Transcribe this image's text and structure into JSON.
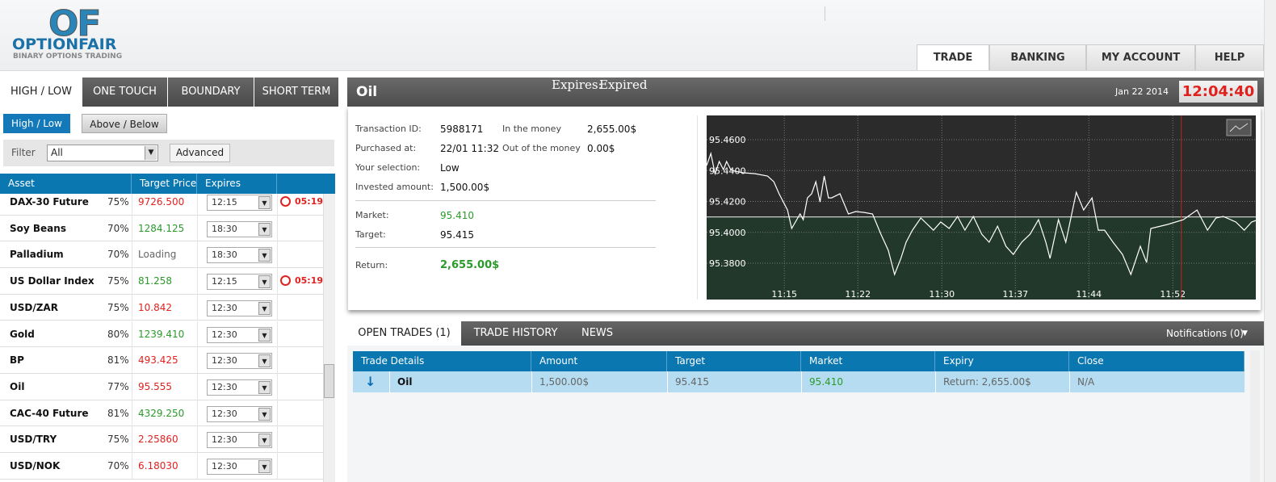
{
  "logo": {
    "mark": "OF",
    "name": "OPTIONFAIR",
    "tagline": "BINARY OPTIONS TRADING"
  },
  "nav": [
    "TRADE",
    "BANKING",
    "MY ACCOUNT",
    "HELP"
  ],
  "left_tabs": [
    "HIGH / LOW",
    "ONE TOUCH",
    "BOUNDARY",
    "SHORT TERM"
  ],
  "sub_tabs": [
    "High / Low",
    "Above / Below"
  ],
  "filter": {
    "label": "Filter",
    "value": "All",
    "button": "Advanced"
  },
  "assets": {
    "headers": [
      "Asset",
      "Target Price",
      "Expires"
    ],
    "rows": [
      {
        "asset": "DAX-30 Future",
        "payout": "75%",
        "price": "9726.500",
        "direction": "down",
        "expires": "12:15",
        "countdown": "05:19"
      },
      {
        "asset": "Soy Beans",
        "payout": "70%",
        "price": "1284.125",
        "direction": "up",
        "expires": "18:30"
      },
      {
        "asset": "Palladium",
        "payout": "70%",
        "price": "Loading",
        "expires": "18:30"
      },
      {
        "asset": "US Dollar Index",
        "payout": "75%",
        "price": "81.258",
        "direction": "up",
        "expires": "12:15",
        "countdown": "05:19"
      },
      {
        "asset": "USD/ZAR",
        "payout": "75%",
        "price": "10.842",
        "direction": "down",
        "expires": "12:30"
      },
      {
        "asset": "Gold",
        "payout": "80%",
        "price": "1239.410",
        "direction": "up",
        "expires": "12:30"
      },
      {
        "asset": "BP",
        "payout": "81%",
        "price": "493.425",
        "direction": "down",
        "expires": "12:30"
      },
      {
        "asset": "Oil",
        "payout": "77%",
        "price": "95.555",
        "direction": "down",
        "expires": "12:30"
      },
      {
        "asset": "CAC-40 Future",
        "payout": "81%",
        "price": "4329.250",
        "direction": "up",
        "expires": "12:30"
      },
      {
        "asset": "USD/TRY",
        "payout": "75%",
        "price": "2.25860",
        "direction": "down",
        "expires": "12:30"
      },
      {
        "asset": "USD/NOK",
        "payout": "70%",
        "price": "6.18030",
        "direction": "down",
        "expires": "12:30"
      }
    ]
  },
  "panel": {
    "title": "Oil",
    "expires_label": "Expires:",
    "expires_value": "Expired",
    "date": "Jan 22 2014",
    "time": "12:04:40"
  },
  "details": {
    "left": [
      [
        "Transaction ID:",
        "5988171"
      ],
      [
        "Purchased at:",
        "22/01 11:32"
      ],
      [
        "Your selection:",
        "Low"
      ],
      [
        "Invested amount:",
        "1,500.00$"
      ]
    ],
    "right": [
      [
        "In the money",
        "2,655.00$"
      ],
      [
        "Out of the money",
        "0.00$"
      ]
    ],
    "market": [
      "Market:",
      "95.410"
    ],
    "target": [
      "Target:",
      "95.415"
    ],
    "return": [
      "Return:",
      "2,655.00$"
    ]
  },
  "chart": {
    "type": "line",
    "color": "#ffffff",
    "grid": true,
    "market_line": 95.41,
    "marker_x": 52.8,
    "xlim": [
      7.6,
      59.9
    ],
    "ylim": [
      95.3565,
      95.4757
    ],
    "xticks": [
      {
        "value": 15,
        "label": "11:15"
      },
      {
        "value": 22,
        "label": "11:22"
      },
      {
        "value": 30,
        "label": "11:30"
      },
      {
        "value": 37,
        "label": "11:37"
      },
      {
        "value": 44,
        "label": "11:44"
      },
      {
        "value": 52,
        "label": "11:52"
      }
    ],
    "yticks": [
      {
        "value": 95.46,
        "label": "95.4600"
      },
      {
        "value": 95.44,
        "label": "95.4400"
      },
      {
        "value": 95.42,
        "label": "95.4200"
      },
      {
        "value": 95.4,
        "label": "95.4000"
      },
      {
        "value": 95.38,
        "label": "95.3800"
      }
    ],
    "x": [
      7.6,
      8.0,
      8.4,
      8.8,
      9.2,
      9.5,
      9.9,
      10.3,
      11.1,
      12.2,
      13.4,
      14.0,
      14.5,
      15.3,
      15.7,
      16.5,
      16.8,
      17.2,
      17.6,
      18.0,
      18.4,
      18.8,
      19.2,
      19.5,
      20.3,
      21.1,
      21.8,
      22.6,
      23.4,
      24.2,
      24.9,
      25.5,
      26.1,
      26.6,
      27.2,
      28.0,
      28.4,
      29.2,
      29.9,
      30.7,
      31.5,
      32.2,
      33.0,
      33.8,
      34.5,
      35.3,
      36.1,
      36.8,
      37.6,
      38.4,
      39.2,
      39.9,
      40.3,
      41.1,
      41.8,
      42.8,
      43.5,
      44.3,
      44.9,
      45.5,
      46.3,
      47.2,
      48.0,
      48.9,
      49.5,
      49.9,
      51.5,
      53.0,
      54.3,
      55.3,
      56.1,
      56.8,
      58.0,
      58.8,
      59.5,
      59.9
    ],
    "values": [
      95.4433,
      95.4511,
      95.438,
      95.4459,
      95.4406,
      95.4459,
      95.4406,
      95.4396,
      95.4386,
      95.438,
      95.4365,
      95.4328,
      95.425,
      95.4145,
      95.4025,
      95.4119,
      95.4082,
      95.4223,
      95.425,
      95.4328,
      95.4197,
      95.4365,
      95.4223,
      95.4223,
      95.425,
      95.4119,
      95.4135,
      95.4129,
      95.4119,
      95.3988,
      95.3884,
      95.3727,
      95.3831,
      95.3936,
      95.4014,
      95.4093,
      95.4067,
      95.4014,
      95.4067,
      95.4025,
      95.4103,
      95.4014,
      95.4103,
      95.3988,
      95.3936,
      95.404,
      95.391,
      95.3857,
      95.3936,
      95.3988,
      95.4082,
      95.3936,
      95.3831,
      95.4082,
      95.3936,
      95.426,
      95.4145,
      95.4223,
      95.4014,
      95.4014,
      95.3936,
      95.3857,
      95.3727,
      95.391,
      95.3805,
      95.4025,
      95.4051,
      95.4082,
      95.4145,
      95.4014,
      95.4093,
      95.4103,
      95.4067,
      95.4014,
      95.4067,
      95.4077
    ]
  },
  "bottom_tabs": [
    "OPEN TRADES (1)",
    "TRADE HISTORY",
    "NEWS"
  ],
  "notifications": "Notifications (0)",
  "trades": {
    "headers": [
      "Trade Details",
      "Amount",
      "Target",
      "Market",
      "Expiry",
      "Close"
    ],
    "rows": [
      [
        "Oil",
        "1,500.00$",
        "95.415",
        "95.410",
        "Return: 2,655.00$",
        "N/A"
      ]
    ]
  }
}
